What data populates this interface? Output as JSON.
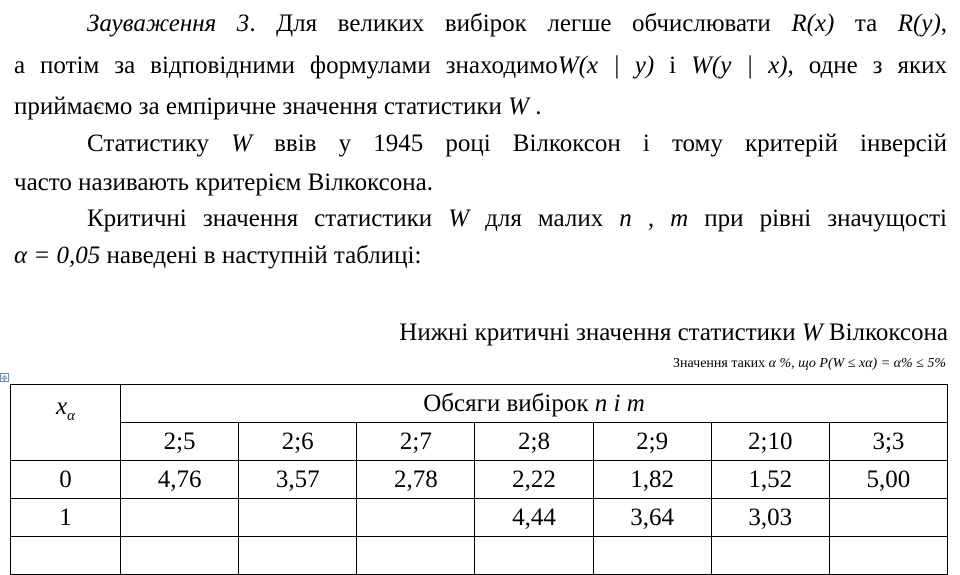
{
  "paragraph1": {
    "remark_label": "Зауваження 3",
    "line1_text": ". Для великих вибірок легше обчислювати",
    "r_x": "R(x)",
    "and1": "та",
    "r_y": "R(y)",
    "line1_end": ",",
    "line2_text": "а потім за відповідними формулами знаходимо",
    "w_xy": "W(x | y)",
    "and2": "і",
    "w_yx": "W(y | x)",
    "line2_end": ", одне з яких",
    "line3_text": "приймаємо за емпіричне значення статистики",
    "w_sym": "W",
    "line3_end": "."
  },
  "paragraph2": {
    "line1_start": "Статистику",
    "w_sym": "W",
    "line1_end": "ввів у 1945 році Вілкоксон і тому критерій інверсій",
    "line2": "часто називають критерієм Вілкоксона."
  },
  "paragraph3": {
    "line1_start": "Критичні значення статистики",
    "w_sym": "W",
    "line1_mid": "для малих",
    "nm": "n , m",
    "line1_end": "при рівні значущості",
    "alpha_eq": "α = 0,05",
    "line2_end": "наведені в наступній таблиці:"
  },
  "table_title": {
    "text": "Нижні критичні значення статистики",
    "w_sym": "W",
    "suffix": "Вілкоксона"
  },
  "table_note": {
    "text": "Значення таких",
    "formula": "α %, що  P(W ≤ xα) = α% ≤ 5%"
  },
  "table": {
    "corner_label_main": "x",
    "corner_label_sub": "α",
    "group_header_text": "Обсяги вибірок",
    "group_header_vars": "n і m",
    "columns": [
      "2;5",
      "2;6",
      "2;7",
      "2;8",
      "2;9",
      "2;10",
      "3;3"
    ],
    "rows": [
      {
        "x": "0",
        "values": [
          "4,76",
          "3,57",
          "2,78",
          "2,22",
          "1,82",
          "1,52",
          "5,00"
        ]
      },
      {
        "x": "1",
        "values": [
          "",
          "",
          "",
          "4,44",
          "3,64",
          "3,03",
          ""
        ]
      }
    ]
  }
}
